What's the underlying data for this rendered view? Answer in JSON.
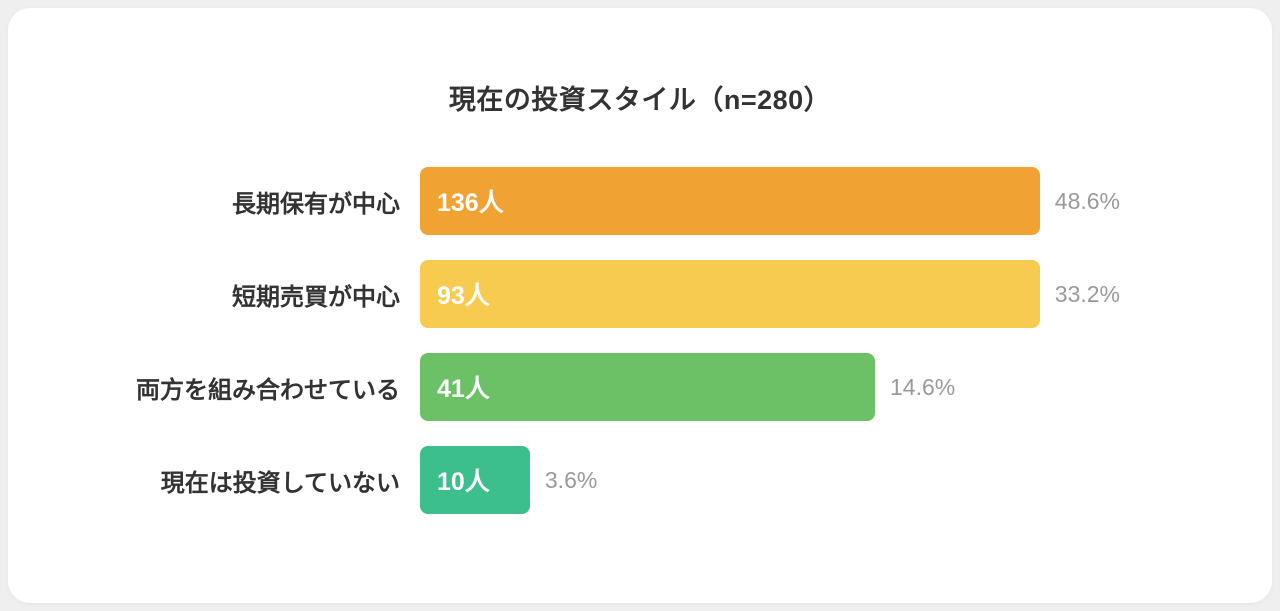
{
  "page": {
    "background_color": "#efefef",
    "card_background_color": "#ffffff"
  },
  "chart_data": {
    "type": "bar",
    "orientation": "horizontal",
    "title": "現在の投資スタイル（n=280）",
    "sample_size": 280,
    "categories": [
      "長期保有が中心",
      "短期売買が中心",
      "両方を組み合わせている",
      "現在は投資していない"
    ],
    "values": [
      136,
      93,
      41,
      10
    ],
    "value_labels": [
      "136人",
      "93人",
      "41人",
      "10人"
    ],
    "percents": [
      48.6,
      33.2,
      14.6,
      3.6
    ],
    "percent_labels": [
      "48.6%",
      "33.2%",
      "14.6%",
      "3.6%"
    ],
    "bar_colors": [
      "#F0A232",
      "#F6CB4F",
      "#6CC167",
      "#3CBE8D"
    ],
    "bar_width_pct": [
      100,
      100,
      65,
      15.7
    ],
    "value_label_color": "#ffffff",
    "percent_label_color": "#9a9a9a",
    "category_label_color": "#333333",
    "grid": false,
    "legend": "none"
  }
}
